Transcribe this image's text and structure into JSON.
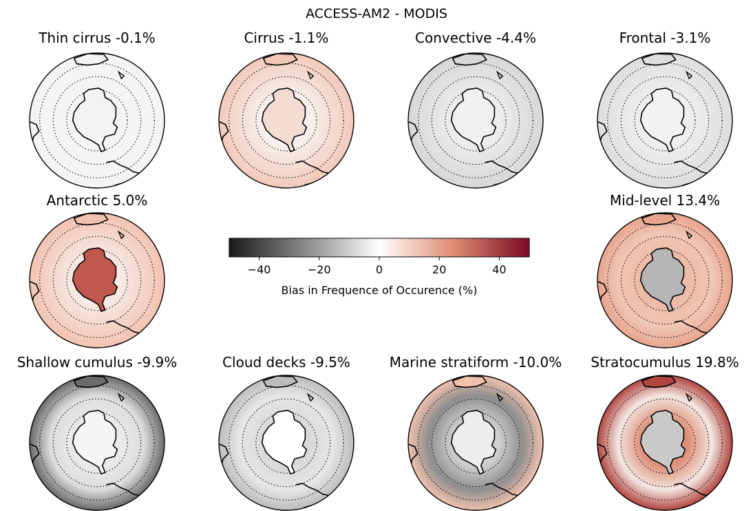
{
  "figure": {
    "title": "ACCESS-AM2 - MODIS"
  },
  "panels": [
    {
      "title": "Thin cirrus -0.1%",
      "mean_bias": -0.1,
      "bias_pattern": "near-neutral"
    },
    {
      "title": "Cirrus -1.1%",
      "mean_bias": -1.1,
      "bias_pattern": "light positive over continent and low latitudes"
    },
    {
      "title": "Convective -4.4%",
      "mean_bias": -4.4,
      "bias_pattern": "light negative"
    },
    {
      "title": "Frontal -3.1%",
      "mean_bias": -3.1,
      "bias_pattern": "light negative"
    },
    {
      "title": "Antarctic 5.0%",
      "mean_bias": 5.0,
      "bias_pattern": "strong positive over continent"
    },
    {
      "title": "Mid-level 13.4%",
      "mean_bias": 13.4,
      "bias_pattern": "positive ocean, negative continent"
    },
    {
      "title": "Shallow cumulus -9.9%",
      "mean_bias": -9.9,
      "bias_pattern": "negative at low latitudes"
    },
    {
      "title": "Cloud decks -9.5%",
      "mean_bias": -9.5,
      "bias_pattern": "negative ocean"
    },
    {
      "title": "Marine stratiform -10.0%",
      "mean_bias": -10.0,
      "bias_pattern": "negative ring, positive low latitudes"
    },
    {
      "title": "Stratocumulus 19.8%",
      "mean_bias": 19.8,
      "bias_pattern": "strong positive ring"
    }
  ],
  "colorbar": {
    "label": "Bias in Frequence of Occurence (%)",
    "vmin": -50,
    "vmax": 50,
    "ticks": [
      -40,
      -20,
      0,
      20,
      40
    ],
    "tick_labels": [
      "−40",
      "−20",
      "0",
      "20",
      "40"
    ],
    "colors": {
      "min": "#1a1a1a",
      "low": "#9e9e9e",
      "zero": "#ffffff",
      "high": "#dd8a72",
      "max": "#7a0a24"
    }
  },
  "map_style": {
    "coastline_color": "#000000",
    "grid_line_style": "dotted"
  }
}
